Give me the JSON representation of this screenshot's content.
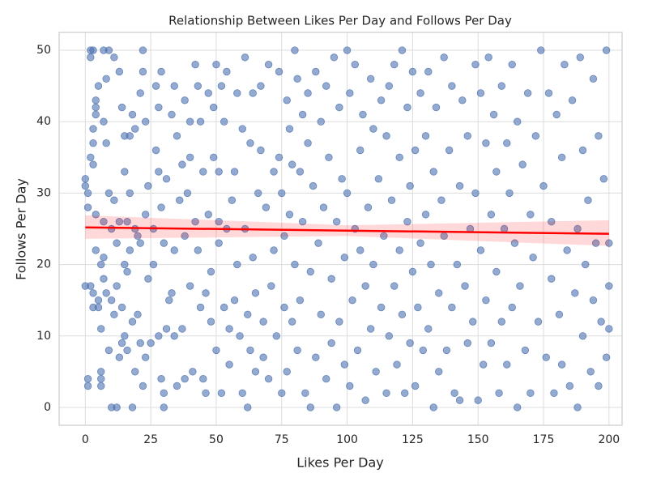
{
  "chart_data": {
    "type": "scatter",
    "title": "Relationship Between Likes Per Day and Follows Per Day",
    "x_label": "Likes Per Day",
    "y_label": "Follows Per Day",
    "xlim": [
      -10,
      205
    ],
    "ylim": [
      -2.5,
      52.5
    ],
    "xticks": [
      0,
      25,
      50,
      75,
      100,
      125,
      150,
      175,
      200
    ],
    "yticks": [
      0,
      10,
      20,
      30,
      40,
      50
    ],
    "grid": true,
    "series": [
      {
        "color": "#4c72b0",
        "x": [
          0,
          0,
          0,
          1,
          1,
          1,
          1,
          2,
          2,
          2,
          2,
          3,
          3,
          3,
          3,
          3,
          3,
          4,
          4,
          4,
          4,
          4,
          5,
          5,
          5,
          6,
          6,
          6,
          6,
          6,
          7,
          7,
          7,
          7,
          7,
          8,
          8,
          8,
          9,
          9,
          9,
          10,
          10,
          10,
          11,
          11,
          11,
          12,
          12,
          12,
          13,
          13,
          13,
          14,
          14,
          14,
          15,
          15,
          15,
          15,
          16,
          16,
          16,
          17,
          17,
          17,
          18,
          18,
          18,
          19,
          19,
          19,
          20,
          20,
          21,
          21,
          21,
          22,
          22,
          22,
          23,
          23,
          23,
          24,
          24,
          25,
          26,
          26,
          27,
          27,
          28,
          28,
          28,
          29,
          29,
          29,
          30,
          30,
          30,
          31,
          31,
          32,
          33,
          33,
          34,
          34,
          34,
          35,
          35,
          36,
          37,
          37,
          38,
          38,
          38,
          39,
          40,
          40,
          40,
          41,
          42,
          42,
          43,
          43,
          44,
          44,
          45,
          45,
          46,
          46,
          47,
          47,
          48,
          48,
          49,
          49,
          50,
          50,
          51,
          51,
          51,
          52,
          52,
          53,
          53,
          54,
          54,
          55,
          55,
          56,
          57,
          57,
          58,
          58,
          59,
          60,
          60,
          61,
          61,
          62,
          62,
          63,
          63,
          64,
          64,
          65,
          65,
          66,
          67,
          67,
          68,
          68,
          69,
          70,
          70,
          71,
          72,
          72,
          73,
          74,
          74,
          75,
          75,
          76,
          76,
          77,
          77,
          78,
          78,
          79,
          79,
          80,
          80,
          81,
          81,
          82,
          82,
          83,
          83,
          84,
          85,
          85,
          86,
          86,
          87,
          88,
          88,
          89,
          90,
          90,
          91,
          92,
          92,
          93,
          94,
          94,
          95,
          96,
          96,
          97,
          97,
          98,
          99,
          99,
          100,
          100,
          101,
          101,
          102,
          103,
          103,
          104,
          105,
          105,
          106,
          107,
          107,
          108,
          109,
          109,
          110,
          110,
          111,
          112,
          113,
          113,
          114,
          115,
          115,
          116,
          116,
          117,
          118,
          118,
          119,
          120,
          120,
          121,
          121,
          122,
          123,
          123,
          124,
          124,
          125,
          125,
          126,
          126,
          127,
          128,
          128,
          129,
          130,
          130,
          131,
          131,
          132,
          133,
          133,
          134,
          135,
          135,
          136,
          137,
          137,
          138,
          139,
          140,
          140,
          141,
          142,
          143,
          143,
          144,
          145,
          146,
          146,
          147,
          148,
          149,
          149,
          150,
          151,
          151,
          152,
          153,
          153,
          154,
          155,
          155,
          156,
          157,
          157,
          158,
          159,
          159,
          160,
          161,
          161,
          162,
          163,
          163,
          164,
          165,
          165,
          166,
          167,
          168,
          169,
          170,
          170,
          171,
          172,
          173,
          174,
          175,
          176,
          177,
          178,
          178,
          179,
          180,
          181,
          182,
          182,
          183,
          184,
          185,
          186,
          187,
          188,
          188,
          189,
          190,
          190,
          191,
          192,
          193,
          194,
          194,
          195,
          196,
          196,
          197,
          198,
          199,
          199,
          200,
          200,
          200
        ],
        "y": [
          17,
          32,
          31,
          30,
          28,
          4,
          3,
          17,
          35,
          49,
          50,
          37,
          39,
          34,
          16,
          14,
          50,
          43,
          41,
          42,
          27,
          22,
          15,
          14,
          45,
          3,
          4,
          5,
          11,
          20,
          21,
          26,
          18,
          40,
          50,
          46,
          37,
          16,
          30,
          8,
          50,
          0,
          25,
          15,
          13,
          29,
          49,
          17,
          23,
          0,
          26,
          47,
          7,
          14,
          9,
          42,
          10,
          33,
          38,
          20,
          26,
          19,
          8,
          38,
          22,
          30,
          41,
          0,
          12,
          39,
          25,
          5,
          24,
          13,
          44,
          23,
          9,
          47,
          3,
          50,
          27,
          7,
          40,
          18,
          31,
          9,
          20,
          25,
          36,
          45,
          42,
          33,
          10,
          47,
          28,
          4,
          23,
          2,
          0,
          11,
          32,
          15,
          16,
          41,
          45,
          22,
          10,
          3,
          38,
          29,
          11,
          34,
          43,
          24,
          4,
          30,
          17,
          40,
          35,
          5,
          48,
          26,
          22,
          45,
          40,
          14,
          33,
          4,
          2,
          16,
          44,
          27,
          19,
          12,
          42,
          35,
          48,
          8,
          23,
          26,
          33,
          2,
          45,
          14,
          40,
          47,
          25,
          6,
          11,
          29,
          33,
          15,
          44,
          20,
          10,
          39,
          2,
          49,
          25,
          0,
          13,
          37,
          8,
          44,
          21,
          5,
          16,
          30,
          45,
          36,
          7,
          12,
          28,
          48,
          4,
          17,
          33,
          22,
          10,
          35,
          47,
          2,
          30,
          24,
          14,
          43,
          5,
          39,
          27,
          12,
          34,
          50,
          20,
          46,
          8,
          33,
          15,
          41,
          26,
          2,
          37,
          44,
          0,
          19,
          31,
          47,
          7,
          23,
          13,
          40,
          28,
          45,
          4,
          35,
          9,
          18,
          49,
          0,
          26,
          42,
          12,
          32,
          6,
          21,
          50,
          30,
          3,
          44,
          15,
          48,
          25,
          8,
          36,
          22,
          41,
          1,
          17,
          28,
          46,
          11,
          39,
          20,
          5,
          32,
          43,
          14,
          24,
          2,
          38,
          45,
          10,
          29,
          48,
          17,
          6,
          35,
          22,
          50,
          13,
          2,
          26,
          42,
          9,
          31,
          47,
          19,
          3,
          36,
          14,
          44,
          23,
          8,
          38,
          27,
          47,
          11,
          20,
          0,
          33,
          42,
          16,
          5,
          29,
          49,
          24,
          8,
          36,
          14,
          45,
          2,
          20,
          31,
          1,
          43,
          17,
          9,
          38,
          25,
          12,
          48,
          30,
          1,
          22,
          44,
          6,
          37,
          15,
          49,
          27,
          9,
          41,
          19,
          33,
          2,
          45,
          12,
          25,
          37,
          6,
          30,
          14,
          48,
          23,
          0,
          40,
          17,
          34,
          8,
          44,
          27,
          2,
          21,
          38,
          12,
          50,
          31,
          7,
          44,
          18,
          26,
          2,
          41,
          13,
          35,
          6,
          48,
          22,
          3,
          43,
          16,
          25,
          0,
          49,
          10,
          36,
          20,
          29,
          5,
          46,
          15,
          23,
          3,
          38,
          12,
          32,
          7,
          50,
          11,
          17,
          23
        ]
      }
    ],
    "regression": {
      "color": "#ff0000",
      "x": [
        0,
        100,
        200
      ],
      "y": [
        25.2,
        24.75,
        24.3
      ],
      "lower": [
        23.6,
        24.0,
        22.6
      ],
      "upper": [
        26.9,
        25.5,
        26.2
      ]
    }
  }
}
